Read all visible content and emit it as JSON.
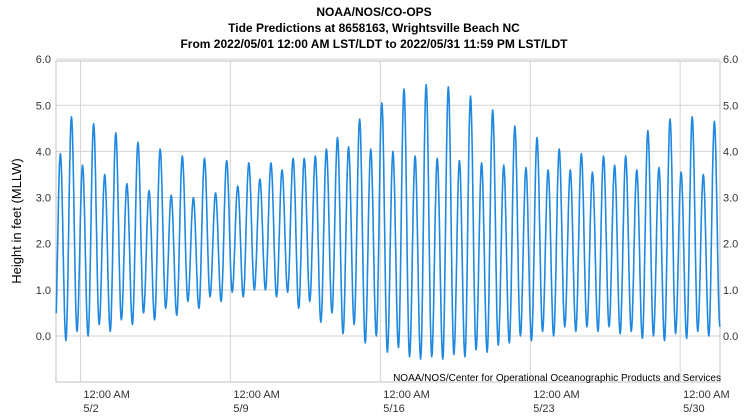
{
  "chart_data": {
    "type": "line",
    "title_lines": [
      "NOAA/NOS/CO-OPS",
      "Tide Predictions at 8658163, Wrightsville Beach NC",
      "From 2022/05/01 12:00 AM LST/LDT to 2022/05/31 11:59 PM LST/LDT"
    ],
    "ylabel": "Height in feet (MLLW)",
    "ylim": [
      -1,
      6
    ],
    "yticks": [
      "6.0",
      "5.0",
      "4.0",
      "3.0",
      "2.0",
      "1.0",
      "0.0"
    ],
    "ytick_values": [
      6,
      5,
      4,
      3,
      2,
      1,
      0
    ],
    "xlim_days": [
      0,
      31
    ],
    "xticks": [
      {
        "day": 1,
        "time": "12:00 AM",
        "date": "5/2"
      },
      {
        "day": 8,
        "time": "12:00 AM",
        "date": "5/9"
      },
      {
        "day": 15,
        "time": "12:00 AM",
        "date": "5/16"
      },
      {
        "day": 22,
        "time": "12:00 AM",
        "date": "5/23"
      },
      {
        "day": 29,
        "time": "12:00 AM",
        "date": "5/30"
      }
    ],
    "credit": "NOAA/NOS/Center for Operational Oceanographic Products and Services",
    "series_color": "#1f88e0",
    "series": [
      {
        "name": "",
        "tide_period_hours": 12.42,
        "first_high_hours": 4.9,
        "highs_ft": [
          3.95,
          4.75,
          3.7,
          4.6,
          3.5,
          4.4,
          3.3,
          4.2,
          3.15,
          4.05,
          3.05,
          3.9,
          3.0,
          3.85,
          3.1,
          3.8,
          3.25,
          3.75,
          3.4,
          3.75,
          3.6,
          3.85,
          3.85,
          3.9,
          4.05,
          4.3,
          4.1,
          4.7,
          4.05,
          5.05,
          4.0,
          5.35,
          3.9,
          5.45,
          3.85,
          5.4,
          3.8,
          5.2,
          3.75,
          4.9,
          3.7,
          4.55,
          3.65,
          4.3,
          3.6,
          4.05,
          3.6,
          3.95,
          3.55,
          3.9,
          3.7,
          3.9,
          3.6,
          4.45,
          3.65,
          4.7,
          3.55,
          4.75,
          3.5,
          4.65,
          3.4,
          4.5
        ],
        "lows_ft": [
          -0.1,
          -0.1,
          0.1,
          0.0,
          0.25,
          0.1,
          0.35,
          0.25,
          0.5,
          0.35,
          0.6,
          0.45,
          0.75,
          0.6,
          0.85,
          0.75,
          0.95,
          0.85,
          1.0,
          1.0,
          0.85,
          0.95,
          0.6,
          0.75,
          0.3,
          0.5,
          0.05,
          0.25,
          -0.15,
          0.0,
          -0.35,
          -0.25,
          -0.45,
          -0.5,
          -0.45,
          -0.5,
          -0.4,
          -0.45,
          -0.3,
          -0.35,
          -0.2,
          -0.15,
          0.0,
          -0.1,
          0.1,
          0.0,
          0.2,
          0.1,
          0.2,
          0.1,
          0.2,
          0.05,
          0.1,
          -0.05,
          0.0,
          -0.1,
          0.05,
          -0.05,
          0.1,
          0.0,
          0.2
        ]
      }
    ]
  }
}
